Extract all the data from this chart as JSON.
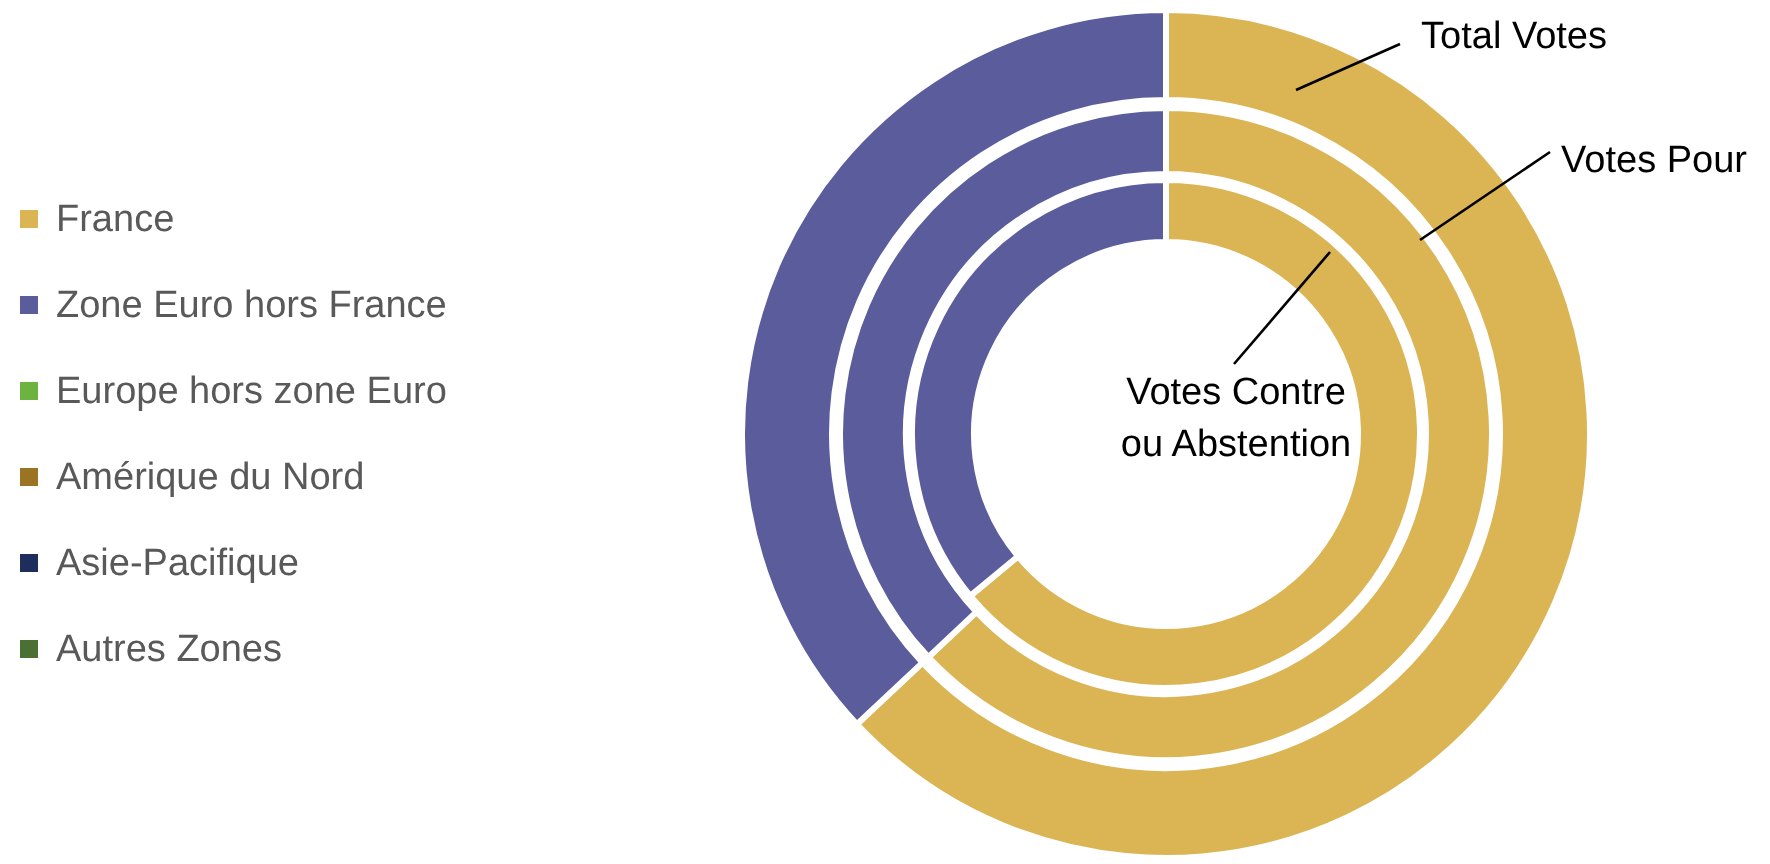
{
  "chart_data": {
    "type": "donut",
    "categories": [
      "France",
      "Zone Euro hors France",
      "Europe hors zone Euro",
      "Amérique du Nord",
      "Asie-Pacifique",
      "Autres Zones"
    ],
    "colors": [
      "#dbb454",
      "#5b5c9c",
      "#6db33f",
      "#9a7422",
      "#1f2d5c",
      "#4a7033"
    ],
    "series": [
      {
        "name": "Total Votes",
        "values": [
          63,
          37,
          0,
          0,
          0,
          0
        ]
      },
      {
        "name": "Votes Pour",
        "values": [
          63,
          37,
          0,
          0,
          0,
          0
        ]
      },
      {
        "name": "Votes Contre\nou Abstention",
        "values": [
          64,
          36,
          0,
          0,
          0,
          0
        ]
      }
    ],
    "legend": "left"
  }
}
